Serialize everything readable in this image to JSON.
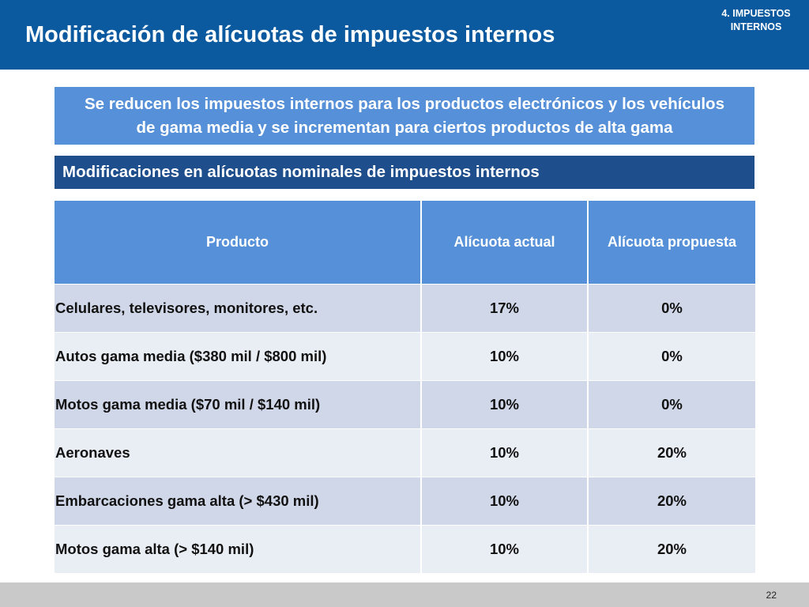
{
  "header": {
    "title": "Modificación de alícuotas de impuestos internos",
    "section_line1": "4. IMPUESTOS",
    "section_line2": "INTERNOS",
    "background_color": "#0b5aa0"
  },
  "banner": {
    "line1": "Se reducen los impuestos internos para los productos electrónicos y los vehículos",
    "line2": "de gama media y se incrementan para ciertos productos de alta gama",
    "background_color": "#5590d8"
  },
  "subheader": {
    "text": "Modificaciones en alícuotas nominales de impuestos internos",
    "background_color": "#1f4e8c"
  },
  "table": {
    "headers": [
      "Producto",
      "Alícuota actual",
      "Alícuota propuesta"
    ],
    "rows": [
      {
        "product": "Celulares, televisores, monitores, etc.",
        "current": "17%",
        "proposed": "0%"
      },
      {
        "product": "Autos gama media ($380 mil / $800 mil)",
        "current": "10%",
        "proposed": "0%"
      },
      {
        "product": "Motos gama media ($70 mil / $140 mil)",
        "current": "10%",
        "proposed": "0%"
      },
      {
        "product": "Aeronaves",
        "current": "10%",
        "proposed": "20%"
      },
      {
        "product": "Embarcaciones gama alta (> $430 mil)",
        "current": "10%",
        "proposed": "20%"
      },
      {
        "product": "Motos gama alta (> $140 mil)",
        "current": "10%",
        "proposed": "20%"
      }
    ]
  },
  "footer": {
    "page_number": "22"
  }
}
